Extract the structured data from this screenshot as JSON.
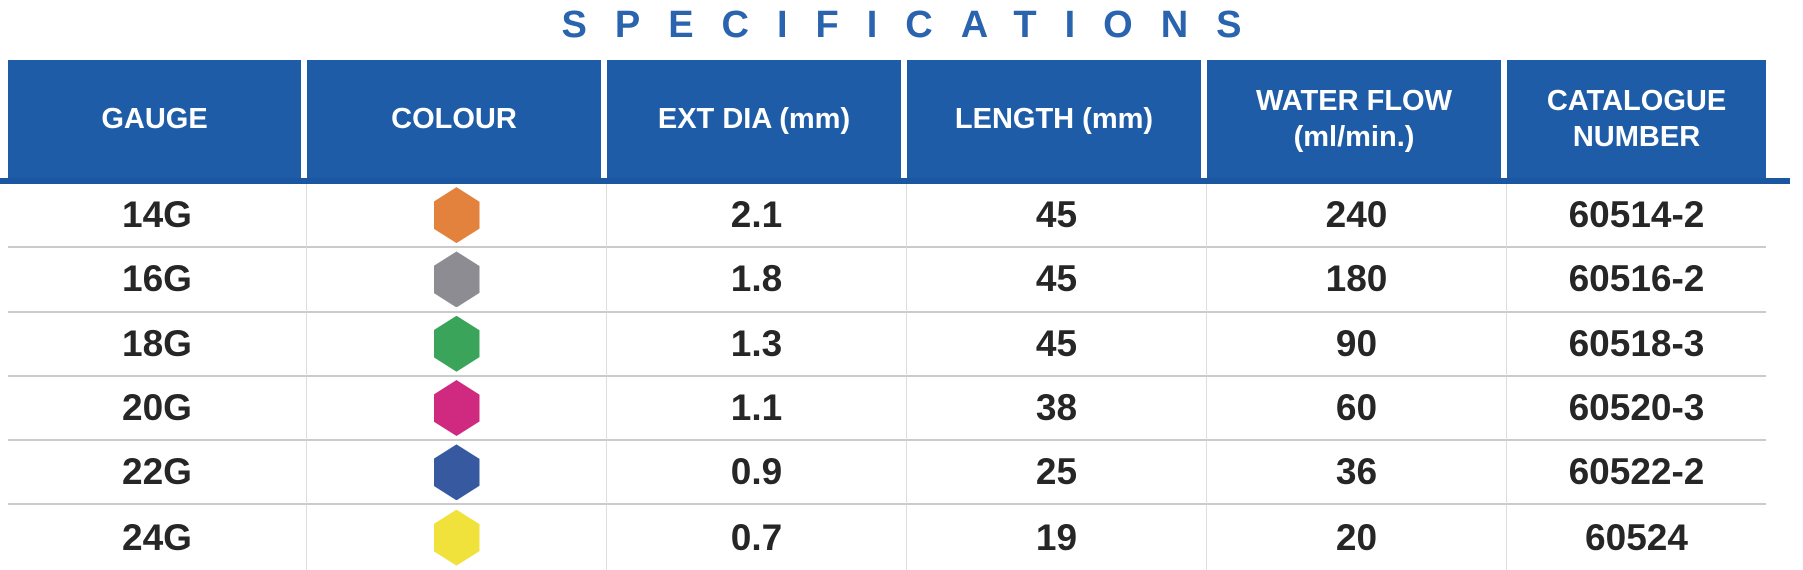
{
  "title": "SPECIFICATIONS",
  "colors": {
    "title_text": "#2a64ae",
    "header_bg": "#1e5ca7",
    "header_rule": "#1b57a0",
    "body_text": "#262626"
  },
  "table": {
    "columns": [
      {
        "label": "GAUGE"
      },
      {
        "label": "COLOUR"
      },
      {
        "label": "EXT DIA (mm)"
      },
      {
        "label": "LENGTH (mm)"
      },
      {
        "label": "WATER FLOW (ml/min.)"
      },
      {
        "label": "CATALOGUE NUMBER"
      }
    ],
    "rows": [
      {
        "gauge": "14G",
        "colour_name": "orange",
        "colour_hex": "#e2823d",
        "ext_dia": "2.1",
        "length": "45",
        "water_flow": "240",
        "catalogue": "60514-2"
      },
      {
        "gauge": "16G",
        "colour_name": "grey",
        "colour_hex": "#8c8c92",
        "ext_dia": "1.8",
        "length": "45",
        "water_flow": "180",
        "catalogue": "60516-2"
      },
      {
        "gauge": "18G",
        "colour_name": "green",
        "colour_hex": "#3aa45a",
        "ext_dia": "1.3",
        "length": "45",
        "water_flow": "90",
        "catalogue": "60518-3"
      },
      {
        "gauge": "20G",
        "colour_name": "pink",
        "colour_hex": "#cf2a80",
        "ext_dia": "1.1",
        "length": "38",
        "water_flow": "60",
        "catalogue": "60520-3"
      },
      {
        "gauge": "22G",
        "colour_name": "blue",
        "colour_hex": "#36599f",
        "ext_dia": "0.9",
        "length": "25",
        "water_flow": "36",
        "catalogue": "60522-2"
      },
      {
        "gauge": "24G",
        "colour_name": "yellow",
        "colour_hex": "#f0e13b",
        "ext_dia": "0.7",
        "length": "19",
        "water_flow": "20",
        "catalogue": "60524"
      }
    ]
  }
}
